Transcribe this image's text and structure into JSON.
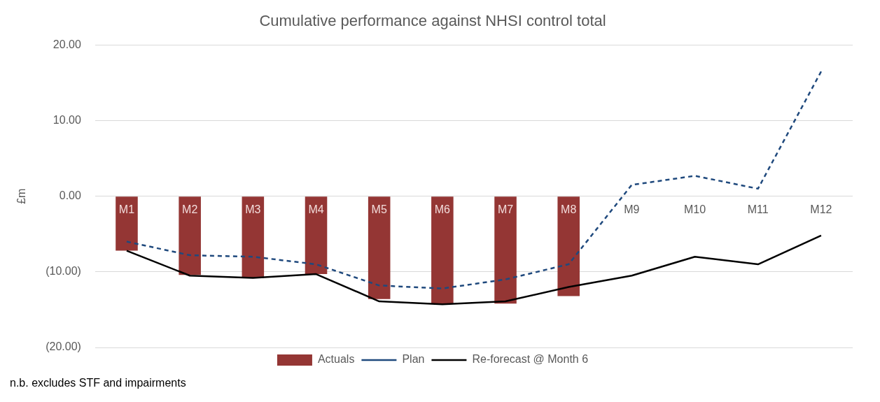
{
  "chart_data": {
    "type": "bar",
    "title": "Cumulative performance against NHSI control total",
    "ylabel": "£m",
    "categories": [
      "M1",
      "M2",
      "M3",
      "M4",
      "M5",
      "M6",
      "M7",
      "M8",
      "M9",
      "M10",
      "M11",
      "M12"
    ],
    "series": [
      {
        "name": "Actuals",
        "color": "#943634",
        "values": [
          -7.2,
          -10.4,
          -10.8,
          -10.3,
          -13.6,
          -14.2,
          -14.2,
          -13.2,
          null,
          null,
          null,
          null
        ]
      },
      {
        "name": "Plan",
        "type": "line",
        "color": "#1f497d",
        "line_style": "dashed",
        "values": [
          -6.0,
          -7.8,
          -8.0,
          -9.0,
          -11.8,
          -12.2,
          -11.0,
          -9.0,
          1.5,
          2.7,
          1.0,
          16.5
        ]
      },
      {
        "name": "Re-forecast @ Month 6",
        "type": "line",
        "color": "#000000",
        "line_style": "solid",
        "values": [
          -7.2,
          -10.5,
          -10.8,
          -10.3,
          -13.9,
          -14.3,
          -13.9,
          -12.0,
          -10.5,
          -8.0,
          -9.0,
          -5.2
        ]
      }
    ],
    "ylim": [
      -20,
      20
    ],
    "yticks": [
      {
        "value": -20,
        "label": "(20.00)"
      },
      {
        "value": -10,
        "label": "(10.00)"
      },
      {
        "value": 0,
        "label": "0.00"
      },
      {
        "value": 10,
        "label": "10.00"
      },
      {
        "value": 20,
        "label": "20.00"
      }
    ],
    "grid": "y",
    "legend": "bottom",
    "marker": "none",
    "annotations": [
      "n.b. excludes STF and impairments"
    ]
  }
}
